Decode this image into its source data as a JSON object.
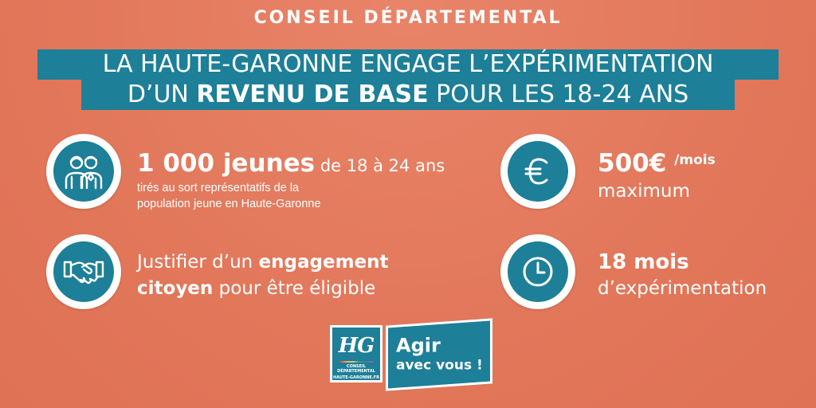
{
  "header": {
    "kicker": "CONSEIL DÉPARTEMENTAL",
    "title_line1": "LA HAUTE-GARONNE ENGAGE L’EXPÉRIMENTATION",
    "title_line2_pre": "D’UN ",
    "title_line2_bold": "REVENU DE BASE",
    "title_line2_post": " POUR LES 18-24 ANS"
  },
  "colors": {
    "background": "#e2775a",
    "accent_teal": "#1d7f98",
    "white": "#ffffff"
  },
  "features": {
    "jeunes": {
      "icon": "people-icon",
      "headline_bold": "1 000 jeunes",
      "headline_rest": " de 18 à 24 ans",
      "sub_line1": "tirés au sort représentatifs de la",
      "sub_line2": "population jeune en Haute-Garonne"
    },
    "engagement": {
      "icon": "handshake-icon",
      "line1_pre": "Justifier d’un ",
      "line1_bold": "engagement",
      "line2_bold": "citoyen",
      "line2_rest": " pour être éligible"
    },
    "montant": {
      "icon": "euro-icon",
      "amount": "500€",
      "unit": "/mois",
      "qualifier": "maximum"
    },
    "duree": {
      "icon": "clock-icon",
      "duration": "18 mois",
      "label": "d’expérimentation"
    }
  },
  "logo": {
    "monogram": "HG",
    "small_line1": "CONSEIL DÉPARTEMENTAL",
    "small_line2": "HAUTE-GARONNE.FR",
    "slogan_line1": "Agir",
    "slogan_line2": "avec vous !"
  }
}
